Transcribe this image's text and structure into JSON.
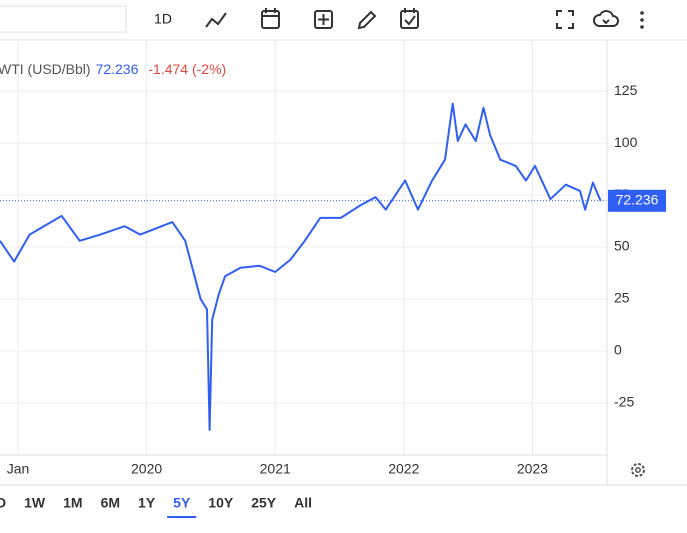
{
  "toolbar": {
    "interval": "1D"
  },
  "chart_data": {
    "type": "line",
    "series": [
      {
        "name": "WTI (USD/Bbl)",
        "color": "#2f5ff5",
        "x": [
          2018.86,
          2018.97,
          2019.09,
          2019.34,
          2019.48,
          2019.64,
          2019.83,
          2019.95,
          2020.2,
          2020.3,
          2020.36,
          2020.42,
          2020.47,
          2020.49,
          2020.51,
          2020.56,
          2020.61,
          2020.73,
          2020.88,
          2021.0,
          2021.12,
          2021.23,
          2021.35,
          2021.51,
          2021.66,
          2021.78,
          2021.86,
          2022.01,
          2022.11,
          2022.22,
          2022.32,
          2022.38,
          2022.42,
          2022.48,
          2022.56,
          2022.62,
          2022.67,
          2022.75,
          2022.87,
          2022.95,
          2023.02,
          2023.14,
          2023.26,
          2023.37,
          2023.41,
          2023.47,
          2023.53
        ],
        "values": [
          53,
          43,
          56,
          65,
          53,
          56,
          60,
          56,
          62,
          53,
          39,
          25,
          20,
          -38,
          15,
          27,
          36,
          40,
          41,
          38,
          44,
          53,
          64,
          64,
          70,
          74,
          68,
          82,
          68,
          82,
          92,
          119,
          101,
          109,
          101,
          117,
          104,
          92,
          89,
          82,
          89,
          73,
          80,
          77,
          68,
          81,
          72.236
        ]
      }
    ],
    "last_value": 72.236,
    "change": "-1.474 (-2%)",
    "xlim": [
      2018.86,
      2023.58
    ],
    "xticks": [
      {
        "value": 2019,
        "label": "Jan"
      },
      {
        "value": 2020,
        "label": "2020"
      },
      {
        "value": 2021,
        "label": "2021"
      },
      {
        "value": 2022,
        "label": "2022"
      },
      {
        "value": 2023,
        "label": "2023"
      }
    ],
    "ylim": [
      -50,
      148.6
    ],
    "yticks": [
      -25,
      0,
      25,
      50,
      75,
      100,
      125
    ],
    "grid": true
  },
  "ranges": {
    "items": [
      "D",
      "1W",
      "1M",
      "6M",
      "1Y",
      "5Y",
      "10Y",
      "25Y",
      "All"
    ],
    "active": 5
  }
}
